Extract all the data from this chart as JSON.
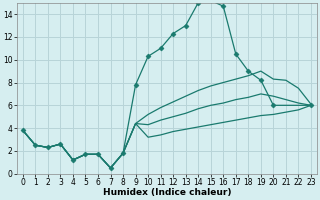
{
  "xlabel": "Humidex (Indice chaleur)",
  "background_color": "#d6eef0",
  "grid_color": "#b8d4d8",
  "line_color": "#1a7a6e",
  "xlim": [
    -0.5,
    23.5
  ],
  "ylim": [
    0,
    15
  ],
  "xticks": [
    0,
    1,
    2,
    3,
    4,
    5,
    6,
    7,
    8,
    9,
    10,
    11,
    12,
    13,
    14,
    15,
    16,
    17,
    18,
    19,
    20,
    21,
    22,
    23
  ],
  "yticks": [
    0,
    2,
    4,
    6,
    8,
    10,
    12,
    14
  ],
  "series_main": {
    "x": [
      0,
      1,
      2,
      3,
      4,
      5,
      6,
      7,
      8,
      9,
      10,
      11,
      12,
      13,
      14,
      15,
      16,
      17,
      18,
      19,
      20,
      23
    ],
    "y": [
      3.8,
      2.5,
      2.3,
      2.6,
      1.2,
      1.7,
      1.7,
      0.5,
      1.8,
      7.8,
      10.3,
      11.0,
      12.3,
      13.0,
      15.0,
      15.2,
      14.7,
      10.5,
      9.0,
      8.2,
      6.0,
      6.0
    ]
  },
  "series_upper": {
    "x": [
      0,
      1,
      2,
      3,
      4,
      5,
      6,
      7,
      8,
      9,
      10,
      11,
      12,
      13,
      14,
      15,
      16,
      17,
      18,
      19,
      20,
      21,
      22,
      23
    ],
    "y": [
      3.8,
      2.5,
      2.3,
      2.6,
      1.2,
      1.7,
      1.7,
      0.5,
      1.8,
      4.4,
      5.2,
      5.8,
      6.3,
      6.8,
      7.3,
      7.7,
      8.0,
      8.3,
      8.6,
      9.0,
      8.3,
      8.2,
      7.5,
      6.1
    ]
  },
  "series_mid": {
    "x": [
      0,
      1,
      2,
      3,
      4,
      5,
      6,
      7,
      8,
      9,
      10,
      11,
      12,
      13,
      14,
      15,
      16,
      17,
      18,
      19,
      20,
      21,
      22,
      23
    ],
    "y": [
      3.8,
      2.5,
      2.3,
      2.6,
      1.2,
      1.7,
      1.7,
      0.5,
      1.8,
      4.4,
      4.3,
      4.7,
      5.0,
      5.3,
      5.7,
      6.0,
      6.2,
      6.5,
      6.7,
      7.0,
      6.8,
      6.5,
      6.2,
      6.0
    ]
  },
  "series_lower": {
    "x": [
      0,
      1,
      2,
      3,
      4,
      5,
      6,
      7,
      8,
      9,
      10,
      11,
      12,
      13,
      14,
      15,
      16,
      17,
      18,
      19,
      20,
      21,
      22,
      23
    ],
    "y": [
      3.8,
      2.5,
      2.3,
      2.6,
      1.2,
      1.7,
      1.7,
      0.5,
      1.8,
      4.4,
      3.2,
      3.4,
      3.7,
      3.9,
      4.1,
      4.3,
      4.5,
      4.7,
      4.9,
      5.1,
      5.2,
      5.4,
      5.6,
      6.0
    ]
  }
}
